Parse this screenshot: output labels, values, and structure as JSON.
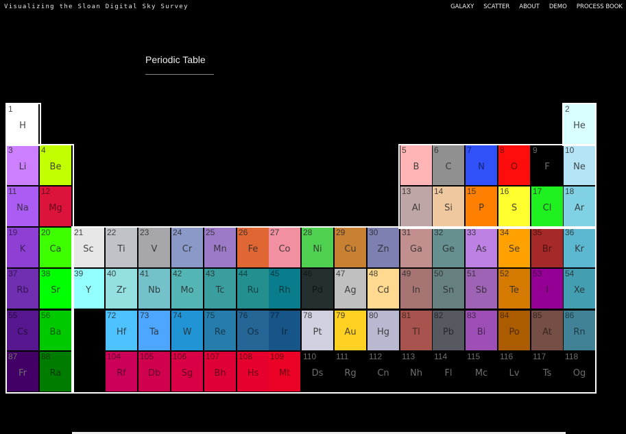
{
  "header": {
    "brand": "Visualizing the Sloan Digital Sky Survey",
    "nav": [
      {
        "id": "galaxy",
        "label": "GALAXY"
      },
      {
        "id": "scatter",
        "label": "SCATTER"
      },
      {
        "id": "about",
        "label": "ABOUT"
      },
      {
        "id": "demo",
        "label": "DEMO"
      },
      {
        "id": "process-book",
        "label": "PROCESS BOOK"
      }
    ]
  },
  "page": {
    "title": "Periodic Table"
  },
  "elements": [
    {
      "n": 1,
      "s": "H",
      "row": 1,
      "col": 1,
      "color": "#ffffff"
    },
    {
      "n": 2,
      "s": "He",
      "row": 1,
      "col": 18,
      "color": "#d9ffff"
    },
    {
      "n": 3,
      "s": "Li",
      "row": 2,
      "col": 1,
      "color": "#cc80ff"
    },
    {
      "n": 4,
      "s": "Be",
      "row": 2,
      "col": 2,
      "color": "#c2ff00"
    },
    {
      "n": 5,
      "s": "B",
      "row": 2,
      "col": 13,
      "color": "#ffb5b5"
    },
    {
      "n": 6,
      "s": "C",
      "row": 2,
      "col": 14,
      "color": "#909090"
    },
    {
      "n": 7,
      "s": "N",
      "row": 2,
      "col": 15,
      "color": "#3050f8"
    },
    {
      "n": 8,
      "s": "O",
      "row": 2,
      "col": 16,
      "color": "#ff0d0d"
    },
    {
      "n": 9,
      "s": "F",
      "row": 2,
      "col": 17,
      "color": "#000000"
    },
    {
      "n": 10,
      "s": "Ne",
      "row": 2,
      "col": 18,
      "color": "#b3e3f5"
    },
    {
      "n": 11,
      "s": "Na",
      "row": 3,
      "col": 1,
      "color": "#ab5cf2"
    },
    {
      "n": 12,
      "s": "Mg",
      "row": 3,
      "col": 2,
      "color": "#dc143c"
    },
    {
      "n": 13,
      "s": "Al",
      "row": 3,
      "col": 13,
      "color": "#bfa6a6"
    },
    {
      "n": 14,
      "s": "Si",
      "row": 3,
      "col": 14,
      "color": "#f0c8a0"
    },
    {
      "n": 15,
      "s": "P",
      "row": 3,
      "col": 15,
      "color": "#ff8000"
    },
    {
      "n": 16,
      "s": "S",
      "row": 3,
      "col": 16,
      "color": "#ffff30"
    },
    {
      "n": 17,
      "s": "Cl",
      "row": 3,
      "col": 17,
      "color": "#1ff01f"
    },
    {
      "n": 18,
      "s": "Ar",
      "row": 3,
      "col": 18,
      "color": "#80d1e3"
    },
    {
      "n": 19,
      "s": "K",
      "row": 4,
      "col": 1,
      "color": "#8f40d4"
    },
    {
      "n": 20,
      "s": "Ca",
      "row": 4,
      "col": 2,
      "color": "#3dff00"
    },
    {
      "n": 21,
      "s": "Sc",
      "row": 4,
      "col": 3,
      "color": "#e6e6e6"
    },
    {
      "n": 22,
      "s": "Ti",
      "row": 4,
      "col": 4,
      "color": "#bfc2c7"
    },
    {
      "n": 23,
      "s": "V",
      "row": 4,
      "col": 5,
      "color": "#a6a6ab"
    },
    {
      "n": 24,
      "s": "Cr",
      "row": 4,
      "col": 6,
      "color": "#8a99c7"
    },
    {
      "n": 25,
      "s": "Mn",
      "row": 4,
      "col": 7,
      "color": "#9c7ac7"
    },
    {
      "n": 26,
      "s": "Fe",
      "row": 4,
      "col": 8,
      "color": "#e06633"
    },
    {
      "n": 27,
      "s": "Co",
      "row": 4,
      "col": 9,
      "color": "#f090a0"
    },
    {
      "n": 28,
      "s": "Ni",
      "row": 4,
      "col": 10,
      "color": "#50d050"
    },
    {
      "n": 29,
      "s": "Cu",
      "row": 4,
      "col": 11,
      "color": "#c88033"
    },
    {
      "n": 30,
      "s": "Zn",
      "row": 4,
      "col": 12,
      "color": "#7d80b0"
    },
    {
      "n": 31,
      "s": "Ga",
      "row": 4,
      "col": 13,
      "color": "#c28f8f"
    },
    {
      "n": 32,
      "s": "Ge",
      "row": 4,
      "col": 14,
      "color": "#668f8f"
    },
    {
      "n": 33,
      "s": "As",
      "row": 4,
      "col": 15,
      "color": "#bd80e3"
    },
    {
      "n": 34,
      "s": "Se",
      "row": 4,
      "col": 16,
      "color": "#ffa100"
    },
    {
      "n": 35,
      "s": "Br",
      "row": 4,
      "col": 17,
      "color": "#a62929"
    },
    {
      "n": 36,
      "s": "Kr",
      "row": 4,
      "col": 18,
      "color": "#5cb8d1"
    },
    {
      "n": 37,
      "s": "Rb",
      "row": 5,
      "col": 1,
      "color": "#702eb0"
    },
    {
      "n": 38,
      "s": "Sr",
      "row": 5,
      "col": 2,
      "color": "#00ff00"
    },
    {
      "n": 39,
      "s": "Y",
      "row": 5,
      "col": 3,
      "color": "#94ffff"
    },
    {
      "n": 40,
      "s": "Zr",
      "row": 5,
      "col": 4,
      "color": "#94e0e0"
    },
    {
      "n": 41,
      "s": "Nb",
      "row": 5,
      "col": 5,
      "color": "#73c2c9"
    },
    {
      "n": 42,
      "s": "Mo",
      "row": 5,
      "col": 6,
      "color": "#54b5b5"
    },
    {
      "n": 43,
      "s": "Tc",
      "row": 5,
      "col": 7,
      "color": "#3b9e9e"
    },
    {
      "n": 44,
      "s": "Ru",
      "row": 5,
      "col": 8,
      "color": "#248f8f"
    },
    {
      "n": 45,
      "s": "Rh",
      "row": 5,
      "col": 9,
      "color": "#0a7d8c"
    },
    {
      "n": 46,
      "s": "Pd",
      "row": 5,
      "col": 10,
      "color": "#243030"
    },
    {
      "n": 47,
      "s": "Ag",
      "row": 5,
      "col": 11,
      "color": "#c0c0c0"
    },
    {
      "n": 48,
      "s": "Cd",
      "row": 5,
      "col": 12,
      "color": "#ffd98f"
    },
    {
      "n": 49,
      "s": "In",
      "row": 5,
      "col": 13,
      "color": "#a67573"
    },
    {
      "n": 50,
      "s": "Sn",
      "row": 5,
      "col": 14,
      "color": "#668080"
    },
    {
      "n": 51,
      "s": "Sb",
      "row": 5,
      "col": 15,
      "color": "#9e63b5"
    },
    {
      "n": 52,
      "s": "Te",
      "row": 5,
      "col": 16,
      "color": "#d47a00"
    },
    {
      "n": 53,
      "s": "I",
      "row": 5,
      "col": 17,
      "color": "#940094"
    },
    {
      "n": 54,
      "s": "Xe",
      "row": 5,
      "col": 18,
      "color": "#429eb0"
    },
    {
      "n": 55,
      "s": "Cs",
      "row": 6,
      "col": 1,
      "color": "#57178f"
    },
    {
      "n": 56,
      "s": "Ba",
      "row": 6,
      "col": 2,
      "color": "#00c900"
    },
    {
      "n": 72,
      "s": "Hf",
      "row": 6,
      "col": 4,
      "color": "#4dc2ff"
    },
    {
      "n": 73,
      "s": "Ta",
      "row": 6,
      "col": 5,
      "color": "#4da6ff"
    },
    {
      "n": 74,
      "s": "W",
      "row": 6,
      "col": 6,
      "color": "#2194d6"
    },
    {
      "n": 75,
      "s": "Re",
      "row": 6,
      "col": 7,
      "color": "#267dab"
    },
    {
      "n": 76,
      "s": "Os",
      "row": 6,
      "col": 8,
      "color": "#266696"
    },
    {
      "n": 77,
      "s": "Ir",
      "row": 6,
      "col": 9,
      "color": "#175487"
    },
    {
      "n": 78,
      "s": "Pt",
      "row": 6,
      "col": 10,
      "color": "#d0d0e0"
    },
    {
      "n": 79,
      "s": "Au",
      "row": 6,
      "col": 11,
      "color": "#ffd123"
    },
    {
      "n": 80,
      "s": "Hg",
      "row": 6,
      "col": 12,
      "color": "#b8b8d0"
    },
    {
      "n": 81,
      "s": "Tl",
      "row": 6,
      "col": 13,
      "color": "#a6544d"
    },
    {
      "n": 82,
      "s": "Pb",
      "row": 6,
      "col": 14,
      "color": "#575961"
    },
    {
      "n": 83,
      "s": "Bi",
      "row": 6,
      "col": 15,
      "color": "#9e4fb5"
    },
    {
      "n": 84,
      "s": "Po",
      "row": 6,
      "col": 16,
      "color": "#ab5c00"
    },
    {
      "n": 85,
      "s": "At",
      "row": 6,
      "col": 17,
      "color": "#754f45"
    },
    {
      "n": 86,
      "s": "Rn",
      "row": 6,
      "col": 18,
      "color": "#428296"
    },
    {
      "n": 87,
      "s": "Fr",
      "row": 7,
      "col": 1,
      "color": "#420066"
    },
    {
      "n": 88,
      "s": "Ra",
      "row": 7,
      "col": 2,
      "color": "#007d00"
    },
    {
      "n": 104,
      "s": "Rf",
      "row": 7,
      "col": 4,
      "color": "#cc0059"
    },
    {
      "n": 105,
      "s": "Db",
      "row": 7,
      "col": 5,
      "color": "#d1004f"
    },
    {
      "n": 106,
      "s": "Sg",
      "row": 7,
      "col": 6,
      "color": "#d90045"
    },
    {
      "n": 107,
      "s": "Bh",
      "row": 7,
      "col": 7,
      "color": "#e00038"
    },
    {
      "n": 108,
      "s": "Hs",
      "row": 7,
      "col": 8,
      "color": "#e6002e"
    },
    {
      "n": 109,
      "s": "Mt",
      "row": 7,
      "col": 9,
      "color": "#eb0026"
    },
    {
      "n": 110,
      "s": "Ds",
      "row": 7,
      "col": 10,
      "color": "#000000"
    },
    {
      "n": 111,
      "s": "Rg",
      "row": 7,
      "col": 11,
      "color": "#000000"
    },
    {
      "n": 112,
      "s": "Cn",
      "row": 7,
      "col": 12,
      "color": "#000000"
    },
    {
      "n": 113,
      "s": "Nh",
      "row": 7,
      "col": 13,
      "color": "#000000"
    },
    {
      "n": 114,
      "s": "Fl",
      "row": 7,
      "col": 14,
      "color": "#000000"
    },
    {
      "n": 115,
      "s": "Mc",
      "row": 7,
      "col": 15,
      "color": "#000000"
    },
    {
      "n": 116,
      "s": "Lv",
      "row": 7,
      "col": 16,
      "color": "#000000"
    },
    {
      "n": 117,
      "s": "Ts",
      "row": 7,
      "col": 17,
      "color": "#000000"
    },
    {
      "n": 118,
      "s": "Og",
      "row": 7,
      "col": 18,
      "color": "#000000"
    }
  ]
}
